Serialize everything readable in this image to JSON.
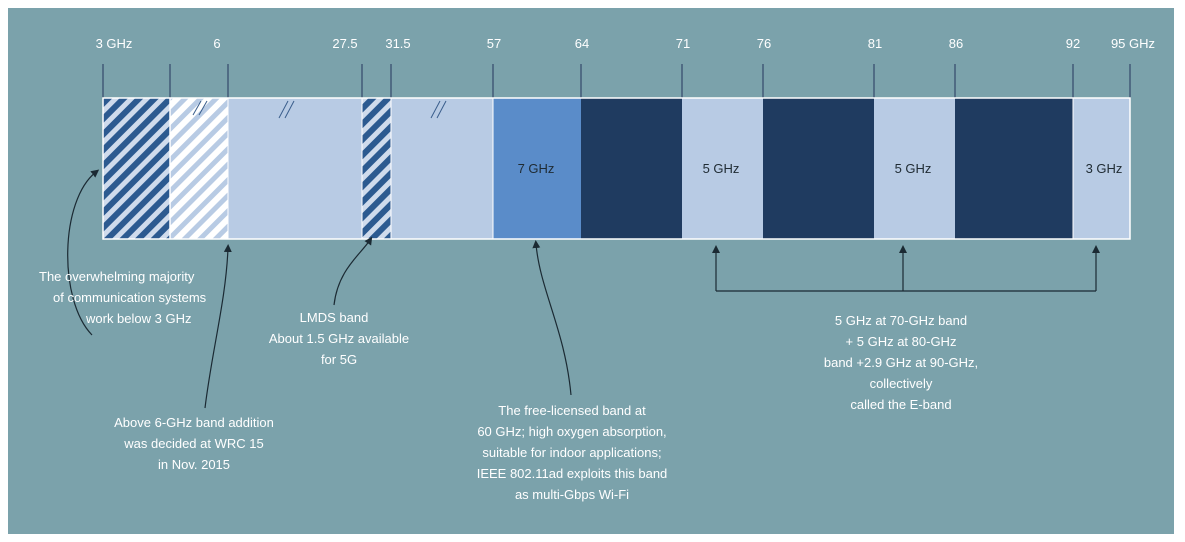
{
  "frequency_ticks": [
    "3 GHz",
    "6",
    "27.5",
    "31.5",
    "57",
    "64",
    "71",
    "76",
    "81",
    "86",
    "92",
    "95 GHz"
  ],
  "band_labels": {
    "unlicensed_60": "7 GHz",
    "e_band_70": "5 GHz",
    "e_band_80": "5 GHz",
    "e_band_90": "3 GHz"
  },
  "annotations": {
    "below_3ghz": [
      "The overwhelming majority",
      "of communication systems",
      "work below 3 GHz"
    ],
    "above_6ghz": [
      "Above 6-GHz band addition",
      "was decided at WRC 15",
      "in Nov. 2015"
    ],
    "lmds": [
      "LMDS band",
      "About 1.5 GHz available",
      "for 5G"
    ],
    "free_60ghz": [
      "The free-licensed band at",
      "60 GHz; high oxygen absorption,",
      "suitable for indoor applications;",
      "IEEE 802.11ad exploits this band",
      "as multi-Gbps Wi-Fi"
    ],
    "e_band": [
      "5 GHz at 70-GHz band",
      "+ 5 GHz at 80-GHz",
      "band +2.9 GHz at 90-GHz,",
      "collectively",
      "called the E-band"
    ]
  },
  "colors": {
    "background": "#7ba2ab",
    "light_band": "#b8cbe4",
    "medium_band": "#5a8cc9",
    "dark_band": "#1f3b60",
    "hatch_dark": "#2c5a90",
    "leader_line": "#1b2a33"
  }
}
